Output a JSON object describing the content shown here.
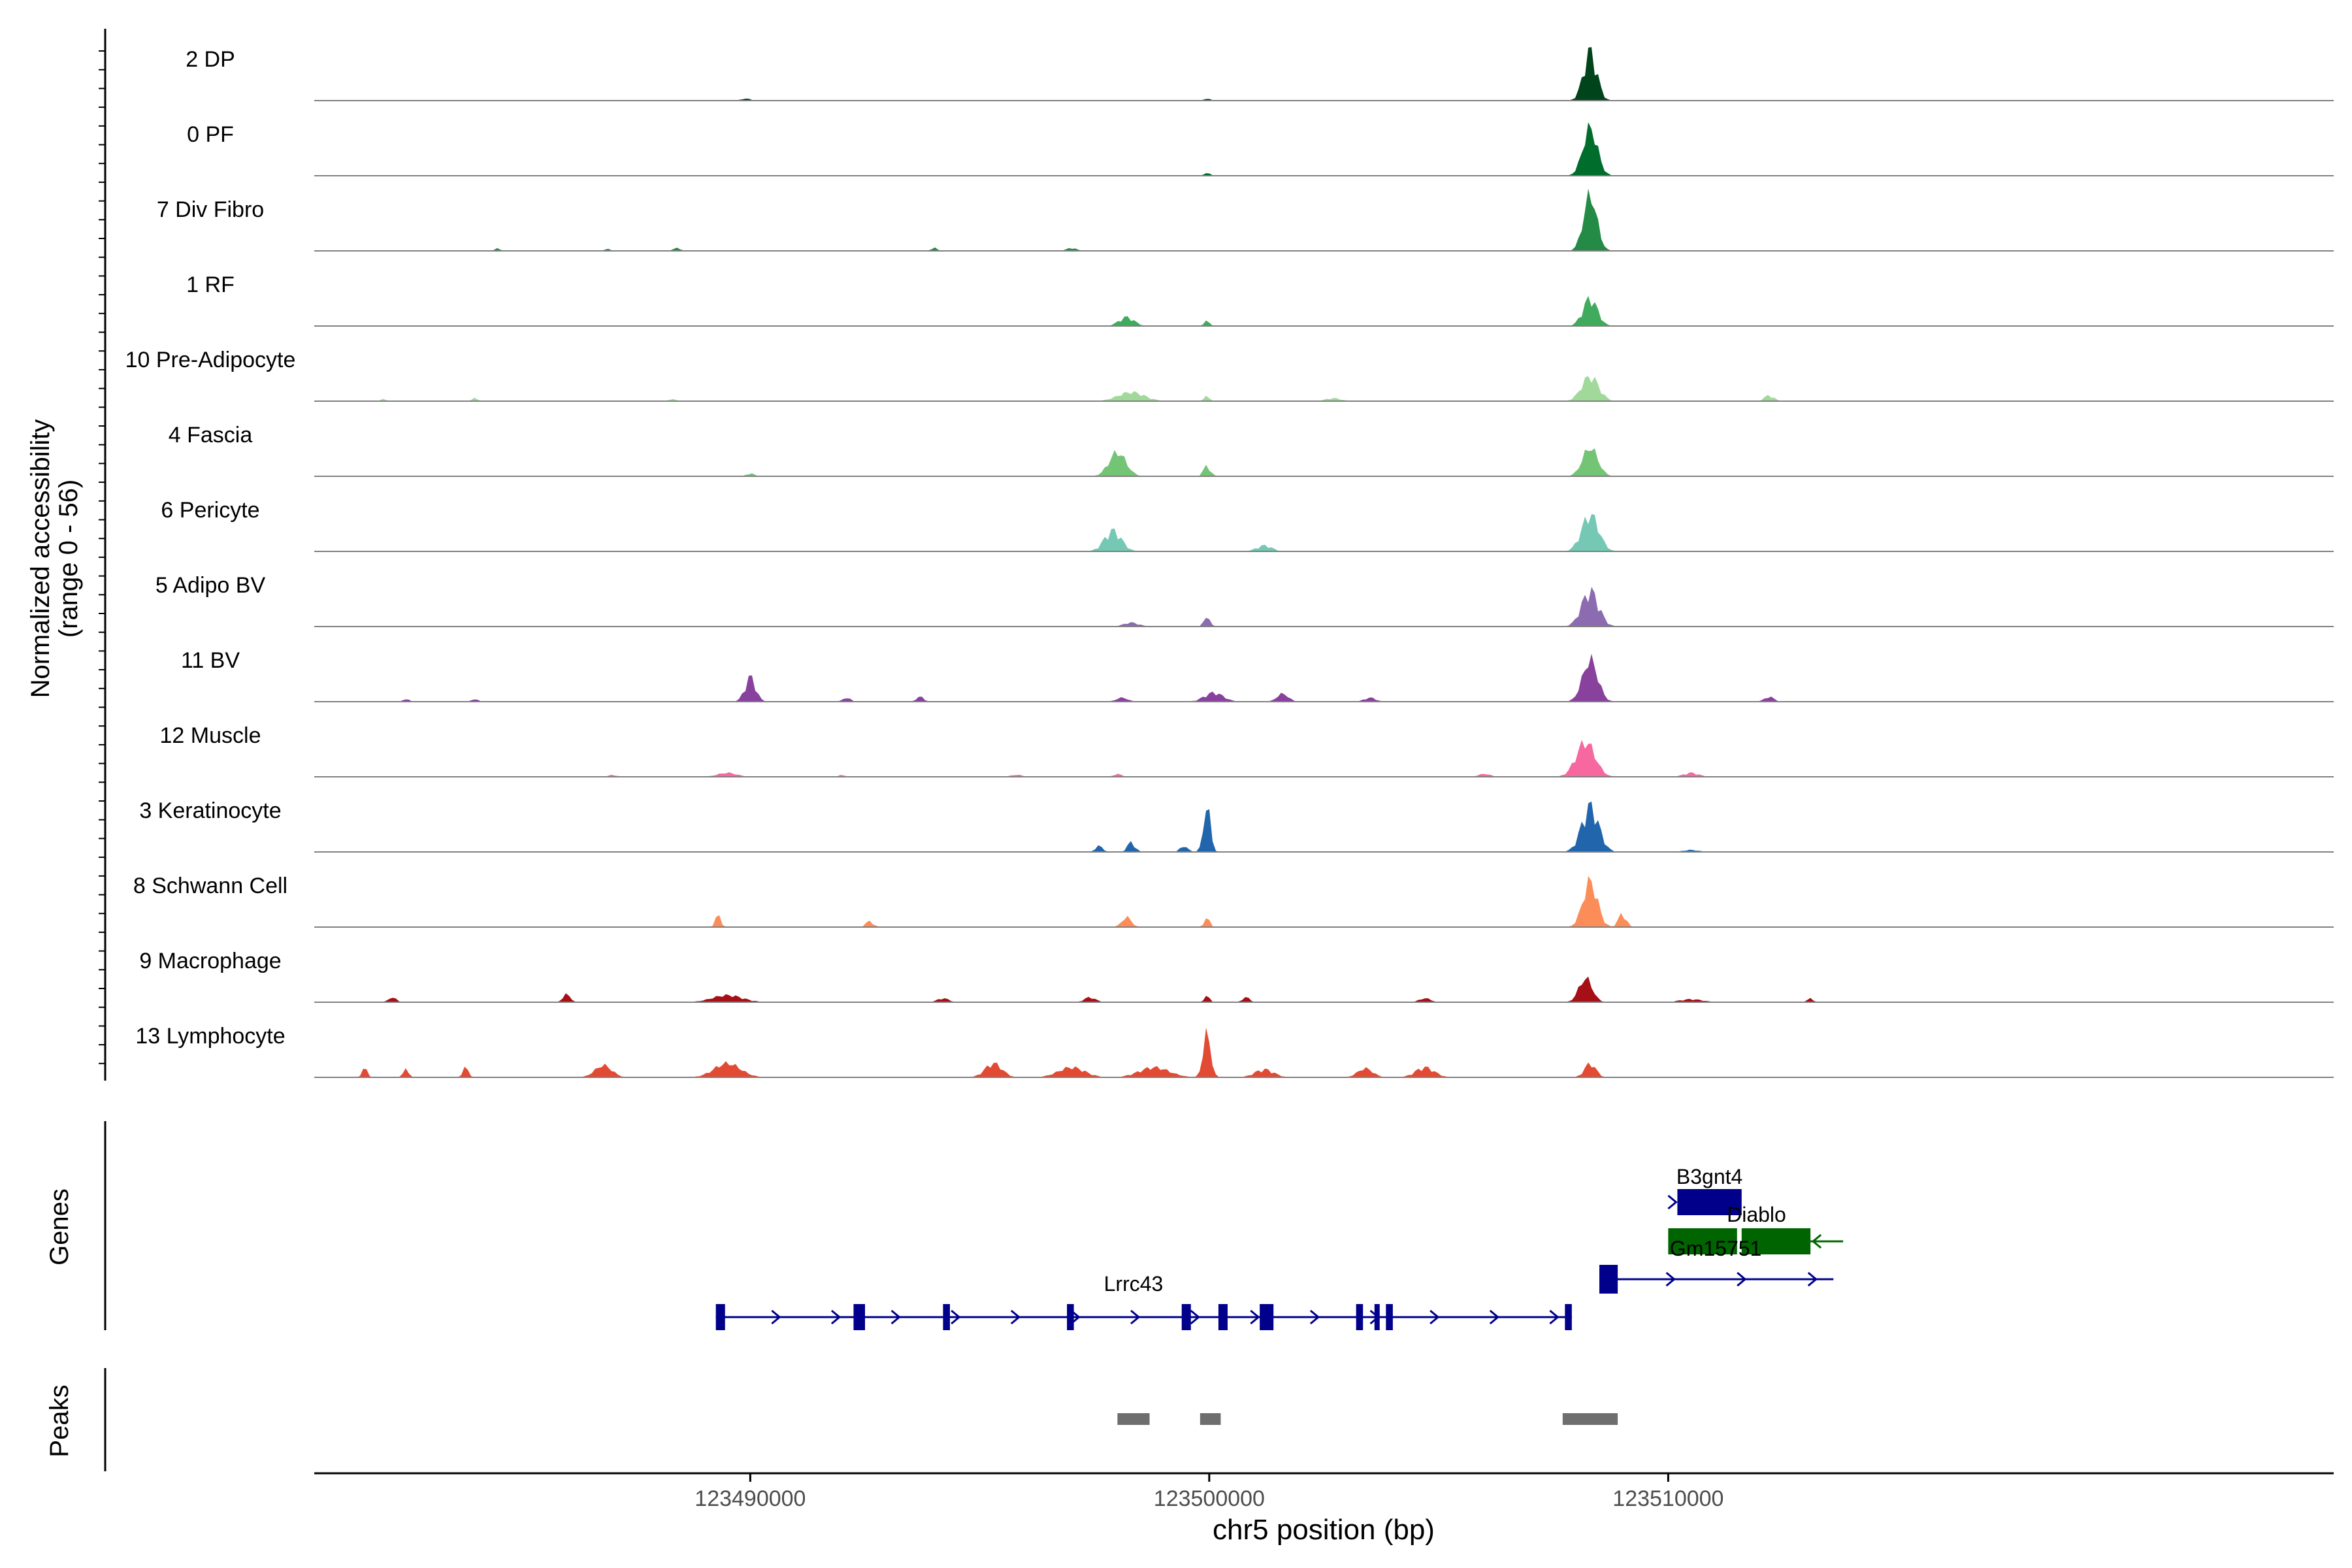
{
  "chart_data": {
    "type": "area",
    "title": "",
    "ylabel_line1": "Normalized accessibility",
    "ylabel_line2": "(range 0 - 56)",
    "ylim": [
      0,
      56
    ],
    "xlabel": "chr5 position (bp)",
    "xlim": [
      123480500,
      123524500
    ],
    "xticks": [
      123490000,
      123500000,
      123510000
    ],
    "xtick_labels": [
      "123490000",
      "123500000",
      "123510000"
    ],
    "peak_center": 123508300,
    "grid": false,
    "tracks": [
      {
        "label": "2 DP",
        "color": "#00441b",
        "peaks": [
          [
            123489900,
            2.0,
            250
          ],
          [
            123499950,
            1.8,
            200
          ],
          [
            123508300,
            50,
            350
          ]
        ]
      },
      {
        "label": "0 PF",
        "color": "#006d2c",
        "peaks": [
          [
            123499950,
            2.5,
            200
          ],
          [
            123508300,
            48,
            380
          ]
        ]
      },
      {
        "label": "7 Div Fibro",
        "color": "#238b45",
        "peaks": [
          [
            123484500,
            2.5,
            150
          ],
          [
            123486900,
            2.0,
            150
          ],
          [
            123488400,
            2.8,
            200
          ],
          [
            123494000,
            3.5,
            150
          ],
          [
            123497000,
            3.0,
            250
          ],
          [
            123508300,
            56,
            350
          ]
        ]
      },
      {
        "label": "1 RF",
        "color": "#41ab5d",
        "peaks": [
          [
            123498200,
            9,
            400
          ],
          [
            123499950,
            5,
            150
          ],
          [
            123508300,
            28,
            380
          ]
        ]
      },
      {
        "label": "10 Pre-Adipocyte",
        "color": "#a1d99b",
        "peaks": [
          [
            123482000,
            2.0,
            150
          ],
          [
            123484000,
            3.0,
            150
          ],
          [
            123488300,
            2.0,
            200
          ],
          [
            123498300,
            9,
            700
          ],
          [
            123499950,
            5,
            150
          ],
          [
            123502700,
            3,
            400
          ],
          [
            123508300,
            25,
            450
          ],
          [
            123512200,
            6,
            250
          ]
        ]
      },
      {
        "label": "4 Fascia",
        "color": "#74c476",
        "peaks": [
          [
            123490000,
            3.0,
            200
          ],
          [
            123498000,
            24,
            450
          ],
          [
            123499950,
            11,
            180
          ],
          [
            123508300,
            29,
            400
          ]
        ]
      },
      {
        "label": "6 Pericyte",
        "color": "#74c8b4",
        "peaks": [
          [
            123497900,
            21,
            450
          ],
          [
            123501200,
            6,
            400
          ],
          [
            123508300,
            37,
            450
          ]
        ]
      },
      {
        "label": "5 Adipo BV",
        "color": "#8c6bb1",
        "peaks": [
          [
            123498300,
            4,
            400
          ],
          [
            123499950,
            11,
            150
          ],
          [
            123508300,
            36,
            450
          ]
        ]
      },
      {
        "label": "11 BV",
        "color": "#88419d",
        "peaks": [
          [
            123482500,
            3,
            150
          ],
          [
            123484000,
            3,
            150
          ],
          [
            123490000,
            25,
            280
          ],
          [
            123492100,
            4,
            200
          ],
          [
            123493700,
            5,
            200
          ],
          [
            123498100,
            4,
            300
          ],
          [
            123500100,
            9,
            500
          ],
          [
            123501600,
            8,
            300
          ],
          [
            123503500,
            4,
            300
          ],
          [
            123508300,
            42,
            400
          ],
          [
            123512200,
            5,
            250
          ]
        ]
      },
      {
        "label": "12 Muscle",
        "color": "#f768a1",
        "peaks": [
          [
            123487000,
            2,
            200
          ],
          [
            123489500,
            4,
            500
          ],
          [
            123492000,
            2,
            150
          ],
          [
            123495800,
            2,
            300
          ],
          [
            123498000,
            3,
            200
          ],
          [
            123506000,
            3,
            300
          ],
          [
            123508200,
            35,
            500
          ],
          [
            123510500,
            4,
            400
          ]
        ]
      },
      {
        "label": "3 Keratinocyte",
        "color": "#2166ac",
        "peaks": [
          [
            123497600,
            6,
            200
          ],
          [
            123498300,
            10,
            200
          ],
          [
            123499450,
            6,
            200
          ],
          [
            123499950,
            47,
            180
          ],
          [
            123508300,
            46,
            450
          ],
          [
            123510500,
            2,
            400
          ]
        ]
      },
      {
        "label": "8 Schwann Cell",
        "color": "#fc8d59",
        "peaks": [
          [
            123489300,
            12,
            150
          ],
          [
            123492600,
            6,
            200
          ],
          [
            123498200,
            10,
            250
          ],
          [
            123499950,
            9,
            150
          ],
          [
            123508300,
            46,
            380
          ],
          [
            123509000,
            14,
            200
          ]
        ]
      },
      {
        "label": "9 Macrophage",
        "color": "#a50f15",
        "peaks": [
          [
            123482200,
            5,
            200
          ],
          [
            123486000,
            8,
            200
          ],
          [
            123489500,
            7,
            800
          ],
          [
            123494200,
            4,
            300
          ],
          [
            123497400,
            5,
            300
          ],
          [
            123499950,
            6,
            150
          ],
          [
            123500800,
            5,
            200
          ],
          [
            123504700,
            4,
            300
          ],
          [
            123508200,
            24,
            350
          ],
          [
            123510500,
            3,
            600
          ],
          [
            123513100,
            4,
            150
          ]
        ]
      },
      {
        "label": "13 Lymphocyte",
        "color": "#e34a33",
        "peaks": [
          [
            123481600,
            9,
            150
          ],
          [
            123482500,
            8,
            150
          ],
          [
            123483800,
            10,
            150
          ],
          [
            123486800,
            12,
            450
          ],
          [
            123489500,
            14,
            700
          ],
          [
            123495300,
            14,
            450
          ],
          [
            123497000,
            10,
            700
          ],
          [
            123498800,
            10,
            800
          ],
          [
            123499950,
            44,
            200
          ],
          [
            123501200,
            8,
            500
          ],
          [
            123503400,
            9,
            400
          ],
          [
            123504700,
            10,
            500
          ],
          [
            123508300,
            14,
            300
          ]
        ]
      }
    ],
    "genes_label": "Genes",
    "peaks_label": "Peaks",
    "genes": [
      {
        "name": "B3gnt4",
        "strand": "+",
        "color": "#00008b",
        "start": 123510200,
        "end": 123511600,
        "exons": [
          [
            123510200,
            123511600
          ]
        ]
      },
      {
        "name": "Diablo",
        "strand": "-",
        "color": "#006400",
        "start": 123511600,
        "end": 123513100,
        "exons": [
          [
            123511600,
            123513100
          ]
        ]
      },
      {
        "name": "Gm15751",
        "strand": "-",
        "color": "#006400",
        "start": 123510000,
        "end": 123511500,
        "exons": [
          [
            123510000,
            123511500
          ]
        ]
      },
      {
        "name": "",
        "strand": "+",
        "color": "#00008b",
        "start": 123508500,
        "end": 123513600,
        "exons": [
          [
            123508500,
            123508900
          ]
        ]
      },
      {
        "name": "Lrrc43",
        "strand": "+",
        "color": "#00008b",
        "start": 123489250,
        "end": 123507900,
        "exons": [
          [
            123489250,
            123489450
          ],
          [
            123492250,
            123492500
          ],
          [
            123494200,
            123494350
          ],
          [
            123496900,
            123497050
          ],
          [
            123499400,
            123499600
          ],
          [
            123500200,
            123500400
          ],
          [
            123501100,
            123501400
          ],
          [
            123503200,
            123503350
          ],
          [
            123503600,
            123503700
          ],
          [
            123503850,
            123504000
          ],
          [
            123507750,
            123507900
          ]
        ]
      }
    ],
    "peak_regions": [
      [
        123498000,
        123498700
      ],
      [
        123499800,
        123500250
      ],
      [
        123507700,
        123508900
      ]
    ]
  }
}
